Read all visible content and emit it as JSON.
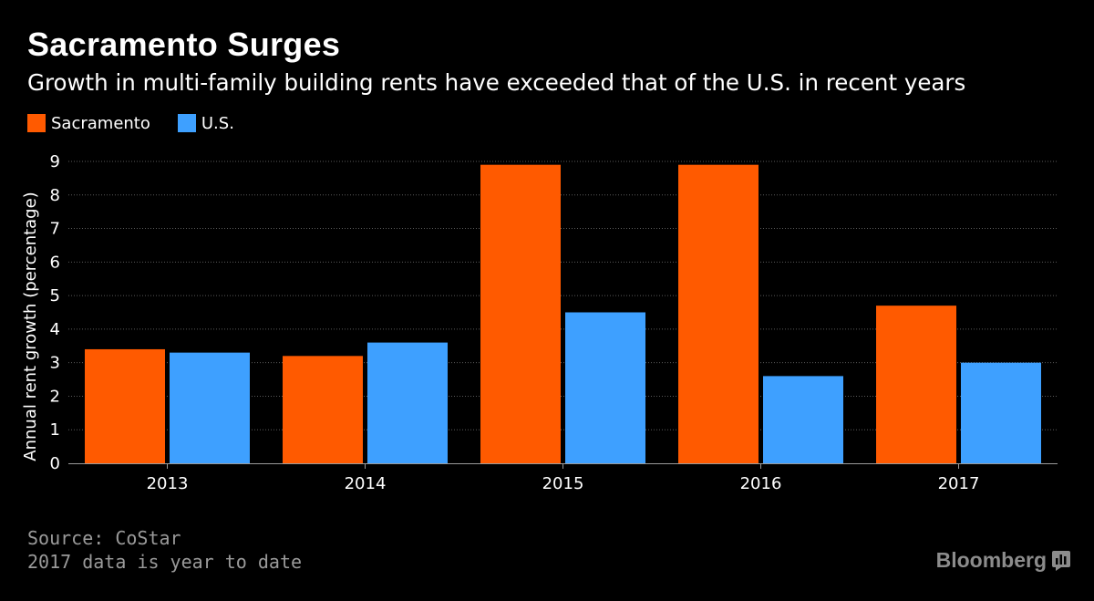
{
  "title": "Sacramento Surges",
  "subtitle": "Growth in multi-family building rents have exceeded that of the U.S. in recent years",
  "colors": {
    "background": "#000000",
    "sacramento": "#ff5a00",
    "us": "#3ea0ff",
    "grid": "#5a5a5a",
    "footnote": "#9a9a9a"
  },
  "footnotes": {
    "source": "Source: CoStar",
    "note": "2017 data is year to date"
  },
  "branding": {
    "logo_text": "Bloomberg",
    "logo_icon": "bloomberg-terminal-icon"
  },
  "chart_data": {
    "type": "bar",
    "title": "Sacramento Surges",
    "subtitle": "Growth in multi-family building rents have exceeded that of the U.S. in recent years",
    "xlabel": "",
    "ylabel": "Annual rent growth (percentage)",
    "categories": [
      "2013",
      "2014",
      "2015",
      "2016",
      "2017"
    ],
    "series": [
      {
        "name": "Sacramento",
        "color": "#ff5a00",
        "values": [
          3.4,
          3.2,
          8.9,
          8.9,
          4.7
        ]
      },
      {
        "name": "U.S.",
        "color": "#3ea0ff",
        "values": [
          3.3,
          3.6,
          4.5,
          2.6,
          3.0
        ]
      }
    ],
    "yticks": [
      0,
      1,
      2,
      3,
      4,
      5,
      6,
      7,
      8,
      9
    ],
    "ylim": [
      0,
      9
    ],
    "grid": true,
    "legend": "top-left"
  }
}
